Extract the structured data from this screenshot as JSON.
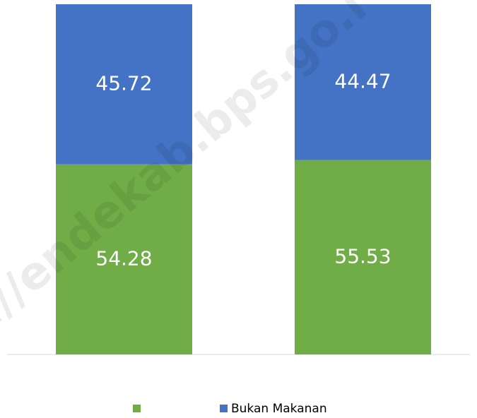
{
  "chart_data": {
    "type": "stacked_bar",
    "categories": [
      null,
      null
    ],
    "series": [
      {
        "name": null,
        "color": "#70ad47",
        "values": [
          54.28,
          55.53
        ]
      },
      {
        "name": "Bukan Makanan",
        "color": "#4472c4",
        "values": [
          45.72,
          44.47
        ]
      }
    ],
    "ylim": [
      0,
      100
    ],
    "legend": "bottom",
    "watermark": "s://endekab.bps.go.i"
  }
}
